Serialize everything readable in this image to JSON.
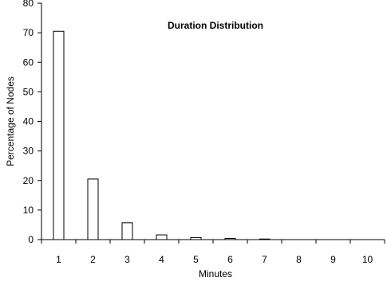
{
  "chart_data": {
    "type": "bar",
    "title": "Duration Distribution",
    "xlabel": "Minutes",
    "ylabel": "Percentage of Nodes",
    "categories": [
      "1",
      "2",
      "3",
      "4",
      "5",
      "6",
      "7",
      "8",
      "9",
      "10"
    ],
    "values": [
      70.5,
      20.5,
      5.7,
      1.6,
      0.7,
      0.4,
      0.2,
      0.05,
      0.02,
      0.01
    ],
    "ylim": [
      0,
      80
    ],
    "yticks": [
      "0",
      "10",
      "20",
      "30",
      "40",
      "50",
      "60",
      "70",
      "80"
    ],
    "grid": false,
    "legend": "none"
  }
}
